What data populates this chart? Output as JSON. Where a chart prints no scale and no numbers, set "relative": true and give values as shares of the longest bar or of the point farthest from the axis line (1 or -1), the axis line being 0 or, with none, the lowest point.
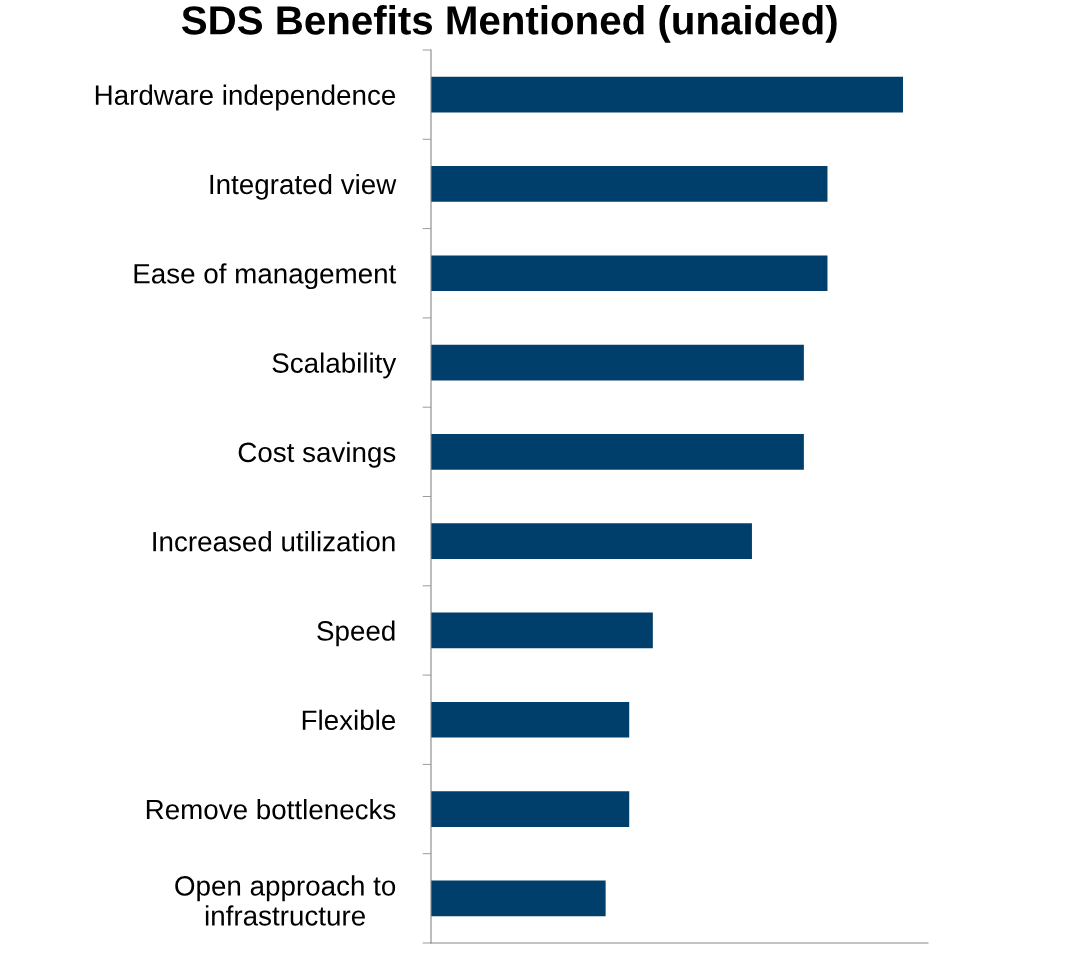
{
  "chart_data": {
    "type": "bar",
    "orientation": "horizontal",
    "relative": true,
    "title": "SDS Benefits Mentioned (unaided)",
    "categories": [
      "Hardware independence",
      "Integrated view",
      "Ease of management",
      "Scalability",
      "Cost savings",
      "Increased utilization",
      "Speed",
      "Flexible",
      "Remove bottlenecks",
      "Open approach to\ninfrastructure"
    ],
    "values": [
      1,
      0.84,
      0.84,
      0.79,
      0.79,
      0.68,
      0.47,
      0.42,
      0.42,
      0.37
    ],
    "color": "#003f6b",
    "grid": false,
    "legend": false
  }
}
